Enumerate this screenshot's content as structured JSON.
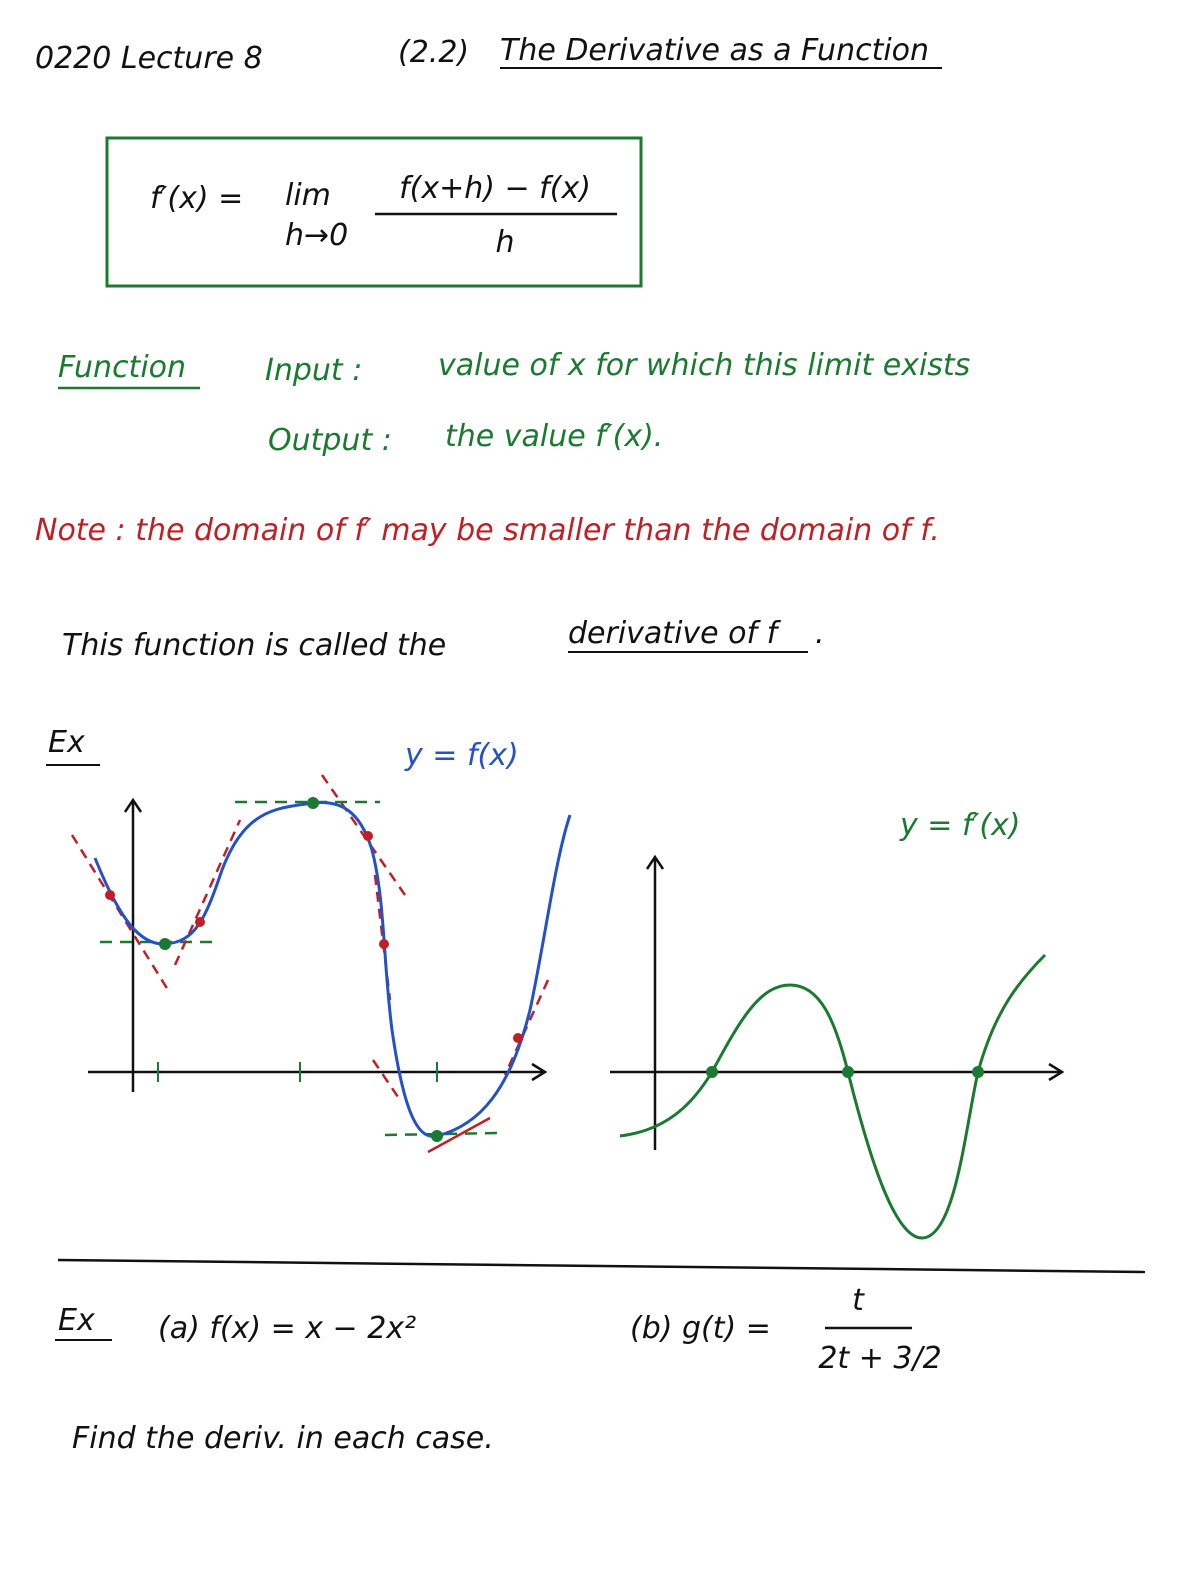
{
  "header": {
    "course": "0220  Lecture 8",
    "section": "(2.2)",
    "title": "The Derivative as a Function"
  },
  "definition": {
    "lhs": "f′(x) =",
    "lim": "lim",
    "limit_sub": "h→0",
    "numerator": "f(x+h) − f(x)",
    "denominator": "h"
  },
  "function_block": {
    "label": "Function",
    "input_label": "Input :",
    "input_text": "value of x for which this limit exists",
    "output_label": "Output :",
    "output_text": "the value f′(x)."
  },
  "note": "Note : the domain of f′ may be smaller than the domain of f.",
  "statement": {
    "text": "This function is called the",
    "term": "derivative of f",
    "end": "."
  },
  "example1": {
    "label": "Ex",
    "f_label": "y = f(x)",
    "fprime_label": "y = f′(x)"
  },
  "example2": {
    "label": "Ex",
    "part_a": "(a)  f(x) = x − 2x²",
    "part_b": "(b)  g(t) =",
    "numerator": "t",
    "denominator": "2t + 3/2"
  },
  "instruction": "Find the deriv. in each case."
}
